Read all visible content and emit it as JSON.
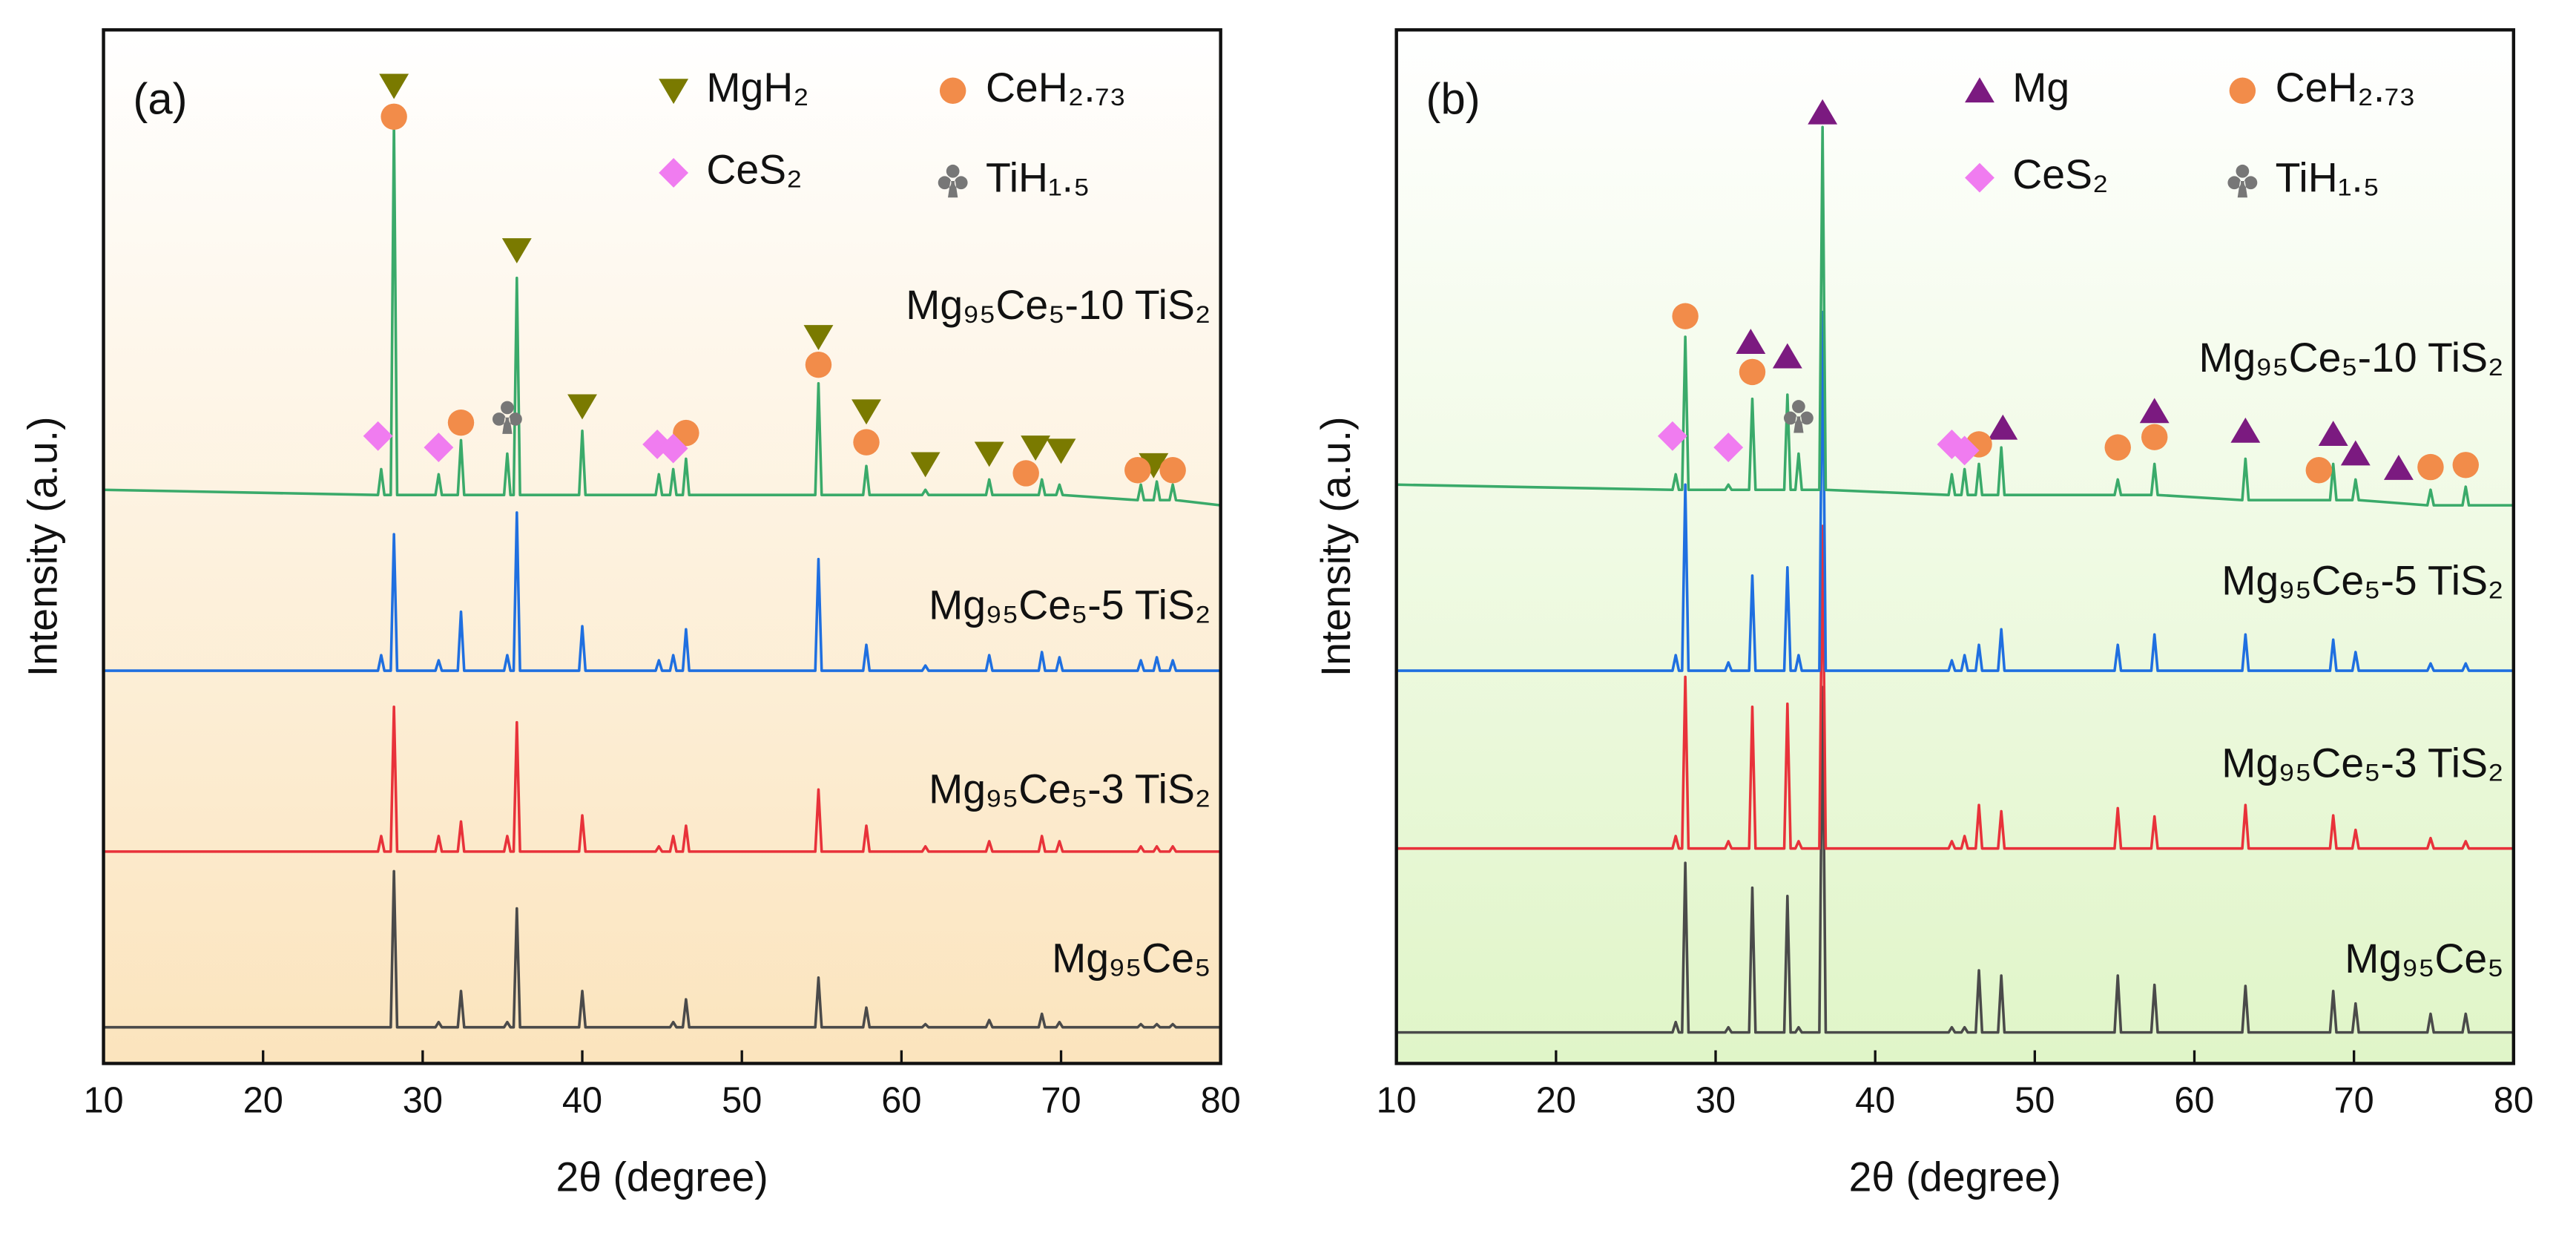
{
  "chart_data": [
    {
      "type": "line",
      "panel_label": "(a)",
      "xlabel": "2θ (degree)",
      "ylabel": "Intensity (a.u.)",
      "xlim": [
        10,
        80
      ],
      "xticks": [
        10,
        20,
        30,
        40,
        50,
        60,
        70,
        80
      ],
      "ylim": [
        0,
        100
      ],
      "x": [
        10,
        27.2,
        27.4,
        27.6,
        28.0,
        28.2,
        28.4,
        30.8,
        31,
        31.2,
        32.2,
        32.4,
        32.6,
        35.1,
        35.3,
        35.5,
        35.7,
        35.9,
        36.1,
        39.8,
        40,
        40.2,
        44.6,
        44.8,
        45,
        45.5,
        45.7,
        45.9,
        46.3,
        46.5,
        46.7,
        54.6,
        54.8,
        55,
        57.6,
        57.8,
        58,
        61.3,
        61.5,
        61.7,
        65.3,
        65.5,
        65.7,
        68.6,
        68.8,
        69,
        69.7,
        69.9,
        70.1,
        74.8,
        75,
        75.2,
        75.8,
        76,
        76.2,
        76.8,
        77,
        77.2,
        80
      ],
      "series": [
        {
          "name": "Mg₉₅Ce₅",
          "color": "#4a4a4a",
          "values": [
            3.5,
            3.5,
            3.5,
            3.5,
            3.5,
            18.6,
            3.5,
            3.5,
            4,
            3.5,
            3.5,
            7,
            3.5,
            3.5,
            4,
            3.5,
            3.5,
            15,
            3.5,
            3.5,
            7,
            3.5,
            3.5,
            3.5,
            3.5,
            3.5,
            4,
            3.5,
            3.5,
            6.2,
            3.5,
            3.5,
            8.3,
            3.5,
            3.5,
            5.4,
            3.5,
            3.5,
            3.8,
            3.5,
            3.5,
            4.2,
            3.5,
            3.5,
            4.8,
            3.5,
            3.5,
            4,
            3.5,
            3.5,
            3.8,
            3.5,
            3.5,
            3.8,
            3.5,
            3.5,
            3.8,
            3.5,
            3.5
          ]
        },
        {
          "name": "Mg₉₅Ce₅-3 TiS₂",
          "color": "#e8323a",
          "values": [
            20.5,
            20.5,
            22,
            20.5,
            20.5,
            34.5,
            20.5,
            20.5,
            22,
            20.5,
            20.5,
            23.4,
            20.5,
            20.5,
            22,
            20.5,
            20.5,
            33,
            20.5,
            20.5,
            24,
            20.5,
            20.5,
            21,
            20.5,
            20.5,
            22,
            20.5,
            20.5,
            23,
            20.5,
            20.5,
            26.5,
            20.5,
            20.5,
            23,
            20.5,
            20.5,
            21,
            20.5,
            20.5,
            21.5,
            20.5,
            20.5,
            22,
            20.5,
            20.5,
            21.5,
            20.5,
            20.5,
            21,
            20.5,
            20.5,
            21,
            20.5,
            20.5,
            21,
            20.5,
            20.5
          ]
        },
        {
          "name": "Mg₉₅Ce₅-5 TiS₂",
          "color": "#1f6fe0",
          "values": [
            38,
            38,
            39.5,
            38,
            38,
            51.2,
            38,
            38,
            39,
            38,
            38,
            43.7,
            38,
            38,
            39.5,
            38,
            38,
            53.3,
            38,
            38,
            42.3,
            38,
            38,
            39,
            38,
            38,
            39.5,
            38,
            38,
            42,
            38,
            38,
            48.8,
            38,
            38,
            40.5,
            38,
            38,
            38.5,
            38,
            38,
            39.5,
            38,
            38,
            39.8,
            38,
            38,
            39.3,
            38,
            38,
            39,
            38,
            38,
            39.3,
            38,
            38,
            39,
            38,
            38
          ]
        },
        {
          "name": "Mg₉₅Ce₅-10 TiS₂",
          "color": "#3aaa6a",
          "values": [
            55.5,
            55,
            57.5,
            55,
            55,
            91,
            55,
            55,
            57,
            55,
            55,
            60.3,
            55,
            55,
            59,
            55,
            55,
            76,
            55,
            55,
            61.2,
            55,
            55,
            57,
            55,
            55,
            57.5,
            55,
            55,
            58.5,
            55,
            55,
            65.8,
            55,
            55,
            57.8,
            55,
            55,
            55.5,
            55,
            55,
            56.5,
            55,
            55,
            56.5,
            55,
            55,
            56,
            55,
            54.5,
            56,
            54.5,
            54.5,
            56.3,
            54.5,
            54.5,
            56,
            54.5,
            54
          ]
        }
      ],
      "phases": [
        {
          "name": "MgH₂",
          "color": "#7a7a00",
          "symbol": "down-triangle"
        },
        {
          "name": "CeH₂.₇₃",
          "color": "#f28c4a",
          "symbol": "circle"
        },
        {
          "name": "CeS₂",
          "color": "#f07cf0",
          "symbol": "diamond"
        },
        {
          "name": "TiH₁.₅",
          "color": "#777777",
          "symbol": "club"
        }
      ],
      "markers": [
        {
          "phase": "MgH₂",
          "x": 28.2,
          "y": 94.6
        },
        {
          "phase": "MgH₂",
          "x": 35.9,
          "y": 78.7
        },
        {
          "phase": "MgH₂",
          "x": 40,
          "y": 63.6
        },
        {
          "phase": "MgH₂",
          "x": 54.8,
          "y": 70.3
        },
        {
          "phase": "MgH₂",
          "x": 57.8,
          "y": 63.1
        },
        {
          "phase": "MgH₂",
          "x": 61.5,
          "y": 58
        },
        {
          "phase": "MgH₂",
          "x": 65.5,
          "y": 59
        },
        {
          "phase": "MgH₂",
          "x": 68.4,
          "y": 59.6
        },
        {
          "phase": "MgH₂",
          "x": 70,
          "y": 59.3
        },
        {
          "phase": "MgH₂",
          "x": 75.8,
          "y": 57.9
        },
        {
          "phase": "CeH₂.₇₃",
          "x": 28.2,
          "y": 91.6
        },
        {
          "phase": "CeH₂.₇₃",
          "x": 32.4,
          "y": 62
        },
        {
          "phase": "CeH₂.₇₃",
          "x": 46.5,
          "y": 61
        },
        {
          "phase": "CeH₂.₇₃",
          "x": 54.8,
          "y": 67.6
        },
        {
          "phase": "CeH₂.₇₃",
          "x": 57.8,
          "y": 60.1
        },
        {
          "phase": "CeH₂.₇₃",
          "x": 67.8,
          "y": 57.1
        },
        {
          "phase": "CeH₂.₇₃",
          "x": 74.8,
          "y": 57.4
        },
        {
          "phase": "CeH₂.₇₃",
          "x": 77,
          "y": 57.4
        },
        {
          "phase": "CeS₂",
          "x": 27.2,
          "y": 60.7
        },
        {
          "phase": "CeS₂",
          "x": 31,
          "y": 59.6
        },
        {
          "phase": "CeS₂",
          "x": 44.7,
          "y": 59.9
        },
        {
          "phase": "CeS₂",
          "x": 45.7,
          "y": 59.5
        },
        {
          "phase": "TiH₁.₅",
          "x": 35.3,
          "y": 62.5
        }
      ]
    },
    {
      "type": "line",
      "panel_label": "(b)",
      "xlabel": "2θ (degree)",
      "ylabel": "Intensity (a.u.)",
      "xlim": [
        10,
        80
      ],
      "xticks": [
        10,
        20,
        30,
        40,
        50,
        60,
        70,
        80
      ],
      "ylim": [
        0,
        100
      ],
      "x": [
        10,
        27.3,
        27.5,
        27.7,
        27.9,
        28.1,
        28.3,
        30.6,
        30.8,
        31,
        32.1,
        32.3,
        32.5,
        34.3,
        34.5,
        34.7,
        35,
        35.2,
        35.4,
        36.5,
        36.7,
        36.9,
        44.6,
        44.8,
        45,
        45.4,
        45.6,
        45.8,
        46.3,
        46.5,
        46.7,
        47.7,
        47.9,
        48.1,
        55,
        55.2,
        55.4,
        57.3,
        57.5,
        57.7,
        63,
        63.2,
        63.4,
        68.5,
        68.7,
        68.9,
        69.9,
        70.1,
        70.3,
        74.6,
        74.8,
        75,
        76.8,
        77,
        77.2,
        80
      ],
      "series": [
        {
          "name": "Mg₉₅Ce₅",
          "color": "#4a4a4a",
          "values": [
            3,
            3,
            4,
            3,
            3,
            19.4,
            3,
            3,
            3.5,
            3,
            3,
            17,
            3,
            3,
            16.2,
            3,
            3,
            3.5,
            3,
            3,
            36.4,
            3,
            3,
            3.5,
            3,
            3,
            3.5,
            3,
            3,
            9,
            3,
            3,
            8.5,
            3,
            3,
            8.5,
            3,
            3,
            7.6,
            3,
            3,
            7.5,
            3,
            3,
            7,
            3,
            3,
            5.8,
            3,
            3,
            4.8,
            3,
            3,
            4.8,
            3,
            3
          ]
        },
        {
          "name": "Mg₉₅Ce₅-3 TiS₂",
          "color": "#e8323a",
          "values": [
            20.8,
            20.8,
            22,
            20.8,
            20.8,
            37.4,
            20.8,
            20.8,
            21.5,
            20.8,
            20.8,
            34.5,
            20.8,
            20.8,
            34.8,
            20.8,
            20.8,
            21.5,
            20.8,
            20.8,
            52,
            20.8,
            20.8,
            21.5,
            20.8,
            20.8,
            22,
            20.8,
            20.8,
            25,
            20.8,
            20.8,
            24.4,
            20.8,
            20.8,
            24.7,
            20.8,
            20.8,
            23.9,
            20.8,
            20.8,
            25,
            20.8,
            20.8,
            24,
            20.8,
            20.8,
            22.6,
            20.8,
            20.8,
            21.8,
            20.8,
            20.8,
            21.5,
            20.8,
            20.8
          ]
        },
        {
          "name": "Mg₉₅Ce₅-5 TiS₂",
          "color": "#1f6fe0",
          "values": [
            38,
            38,
            39.5,
            38,
            38,
            56,
            38,
            38,
            38.8,
            38,
            38,
            47.2,
            38,
            38,
            48,
            38,
            38,
            39.5,
            38,
            38,
            72.7,
            38,
            38,
            39,
            38,
            38,
            39.5,
            38,
            38,
            40.5,
            38,
            38,
            42,
            38,
            38,
            40.5,
            38,
            38,
            41.5,
            38,
            38,
            41.5,
            38,
            38,
            41,
            38,
            38,
            39.8,
            38,
            38,
            38.7,
            38,
            38,
            38.7,
            38,
            38
          ]
        },
        {
          "name": "Mg₉₅Ce₅-10 TiS₂",
          "color": "#3aaa6a",
          "values": [
            56,
            55.5,
            57,
            55.5,
            55.5,
            70.3,
            55.5,
            55.5,
            56,
            55.5,
            55.5,
            64.3,
            55.5,
            55.5,
            64.7,
            55.5,
            55.5,
            59,
            55.5,
            55.5,
            90.6,
            55.5,
            55,
            57,
            55,
            55,
            57.5,
            55,
            55,
            58,
            55,
            55,
            59.6,
            55,
            55,
            56.5,
            55,
            55,
            58,
            55,
            54.5,
            58.5,
            54.5,
            54.5,
            58,
            54.5,
            54.5,
            56.5,
            54.5,
            54,
            55.5,
            54,
            54,
            55.8,
            54,
            54
          ]
        }
      ],
      "phases": [
        {
          "name": "Mg",
          "color": "#7b1a80",
          "symbol": "up-triangle"
        },
        {
          "name": "CeH₂.₇₃",
          "color": "#f28c4a",
          "symbol": "circle"
        },
        {
          "name": "CeS₂",
          "color": "#f07cf0",
          "symbol": "diamond"
        },
        {
          "name": "TiH₁.₅",
          "color": "#777777",
          "symbol": "club"
        }
      ],
      "markers": [
        {
          "phase": "Mg",
          "x": 36.7,
          "y": 92
        },
        {
          "phase": "Mg",
          "x": 32.2,
          "y": 69.8
        },
        {
          "phase": "Mg",
          "x": 34.5,
          "y": 68.4
        },
        {
          "phase": "Mg",
          "x": 48,
          "y": 61.5
        },
        {
          "phase": "Mg",
          "x": 57.5,
          "y": 63.1
        },
        {
          "phase": "Mg",
          "x": 63.2,
          "y": 61.2
        },
        {
          "phase": "Mg",
          "x": 68.7,
          "y": 60.9
        },
        {
          "phase": "Mg",
          "x": 70.1,
          "y": 59
        },
        {
          "phase": "Mg",
          "x": 72.8,
          "y": 57.6
        },
        {
          "phase": "CeH₂.₇₃",
          "x": 28.1,
          "y": 72.3
        },
        {
          "phase": "CeH₂.₇₃",
          "x": 32.3,
          "y": 66.9
        },
        {
          "phase": "CeH₂.₇₃",
          "x": 46.5,
          "y": 59.9
        },
        {
          "phase": "CeH₂.₇₃",
          "x": 55.2,
          "y": 59.6
        },
        {
          "phase": "CeH₂.₇₃",
          "x": 57.5,
          "y": 60.6
        },
        {
          "phase": "CeH₂.₇₃",
          "x": 67.8,
          "y": 57.4
        },
        {
          "phase": "CeH₂.₇₃",
          "x": 74.8,
          "y": 57.7
        },
        {
          "phase": "CeH₂.₇₃",
          "x": 77,
          "y": 57.9
        },
        {
          "phase": "CeS₂",
          "x": 27.3,
          "y": 60.7
        },
        {
          "phase": "CeS₂",
          "x": 30.8,
          "y": 59.6
        },
        {
          "phase": "CeS₂",
          "x": 44.8,
          "y": 59.9
        },
        {
          "phase": "CeS₂",
          "x": 45.6,
          "y": 59.3
        },
        {
          "phase": "TiH₁.₅",
          "x": 35.2,
          "y": 62.6
        }
      ]
    }
  ]
}
